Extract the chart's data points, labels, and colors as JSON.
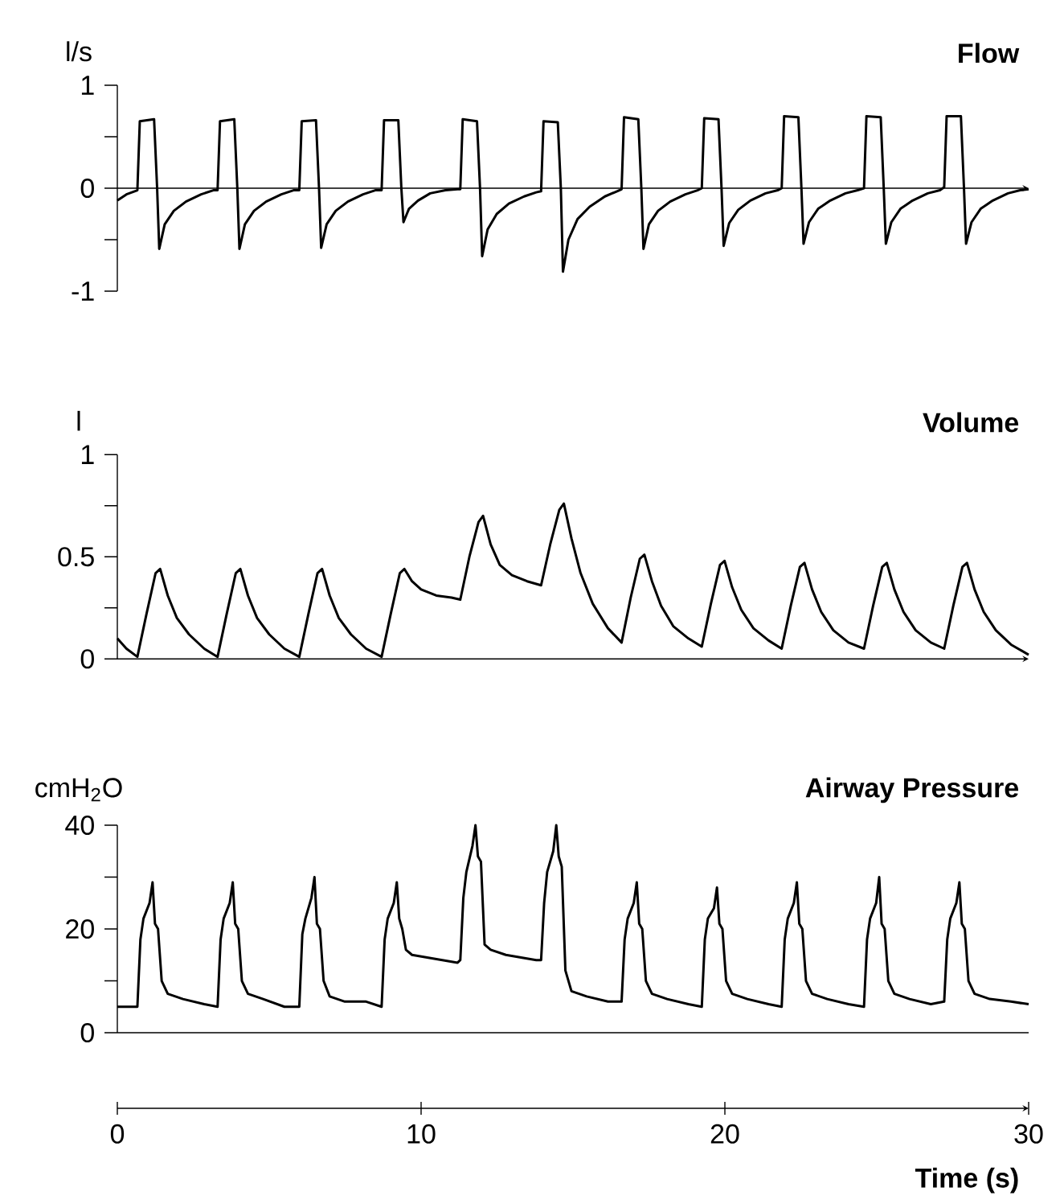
{
  "chart_data": [
    {
      "type": "line",
      "title": "Flow",
      "ylabel": "l/s",
      "color": "#000000",
      "xlim": [
        0,
        30
      ],
      "ylim": [
        -1,
        1
      ],
      "tick_labels": "y",
      "yticks": [
        -1,
        {
          "value": -0.5,
          "label": null
        },
        0,
        {
          "value": 0.5,
          "label": null
        },
        1
      ],
      "x": [
        0,
        0.3,
        0.66,
        0.74,
        1.21,
        1.31,
        1.38,
        1.56,
        1.86,
        2.26,
        2.76,
        3.16,
        3.3,
        3.38,
        3.85,
        3.95,
        4.02,
        4.2,
        4.5,
        4.9,
        5.4,
        5.8,
        5.99,
        6.07,
        6.54,
        6.64,
        6.71,
        6.89,
        7.19,
        7.59,
        8.09,
        8.49,
        8.7,
        8.78,
        9.25,
        9.35,
        9.42,
        9.6,
        9.9,
        10.3,
        10.8,
        11.2,
        11.29,
        11.37,
        11.84,
        11.94,
        12.01,
        12.19,
        12.49,
        12.89,
        13.39,
        13.79,
        13.95,
        14.03,
        14.5,
        14.6,
        14.67,
        14.85,
        15.15,
        15.55,
        16.05,
        16.45,
        16.6,
        16.68,
        17.15,
        17.25,
        17.32,
        17.5,
        17.8,
        18.2,
        18.7,
        19.1,
        19.24,
        19.32,
        19.79,
        19.89,
        19.96,
        20.14,
        20.44,
        20.84,
        21.34,
        21.74,
        21.87,
        21.95,
        22.42,
        22.52,
        22.59,
        22.77,
        23.07,
        23.47,
        23.97,
        24.37,
        24.58,
        24.66,
        25.13,
        25.23,
        25.3,
        25.48,
        25.78,
        26.18,
        26.68,
        27.08,
        27.22,
        27.3,
        27.77,
        27.87,
        27.94,
        28.12,
        28.42,
        28.82,
        29.32,
        29.72,
        30
      ],
      "values": [
        -0.12,
        -0.06,
        -0.02,
        0.65,
        0.67,
        0,
        -0.59,
        -0.35,
        -0.22,
        -0.13,
        -0.06,
        -0.02,
        -0.02,
        0.65,
        0.67,
        0,
        -0.59,
        -0.35,
        -0.22,
        -0.13,
        -0.06,
        -0.02,
        -0.02,
        0.65,
        0.66,
        0,
        -0.58,
        -0.35,
        -0.22,
        -0.13,
        -0.06,
        -0.02,
        -0.02,
        0.66,
        0.66,
        0,
        -0.33,
        -0.2,
        -0.12,
        -0.05,
        -0.02,
        -0.01,
        -0.01,
        0.67,
        0.65,
        0,
        -0.66,
        -0.4,
        -0.25,
        -0.15,
        -0.08,
        -0.04,
        -0.03,
        0.65,
        0.64,
        0,
        -0.81,
        -0.5,
        -0.3,
        -0.18,
        -0.08,
        -0.03,
        -0.01,
        0.69,
        0.67,
        0,
        -0.59,
        -0.35,
        -0.22,
        -0.13,
        -0.06,
        -0.02,
        0,
        0.68,
        0.67,
        0,
        -0.56,
        -0.34,
        -0.21,
        -0.12,
        -0.05,
        -0.02,
        0,
        0.7,
        0.69,
        0,
        -0.54,
        -0.33,
        -0.2,
        -0.12,
        -0.05,
        -0.02,
        0,
        0.7,
        0.69,
        0,
        -0.54,
        -0.33,
        -0.2,
        -0.12,
        -0.05,
        -0.02,
        0.01,
        0.7,
        0.7,
        0.01,
        -0.54,
        -0.33,
        -0.2,
        -0.12,
        -0.05,
        -0.02,
        -0.01
      ]
    },
    {
      "type": "line",
      "title": "Volume",
      "ylabel": "l",
      "color": "#000000",
      "xlim": [
        0,
        30
      ],
      "ylim": [
        0,
        1
      ],
      "tick_labels": "y",
      "yticks": [
        0,
        {
          "value": 0.25,
          "label": null
        },
        0.5,
        {
          "value": 0.75,
          "label": null
        },
        1
      ],
      "x": [
        0,
        0.3,
        0.66,
        0.96,
        1.26,
        1.41,
        1.66,
        1.96,
        2.36,
        2.86,
        3.3,
        3.6,
        3.9,
        4.05,
        4.3,
        4.6,
        5.0,
        5.5,
        5.99,
        6.29,
        6.59,
        6.74,
        6.99,
        7.29,
        7.69,
        8.19,
        8.7,
        9.0,
        9.3,
        9.45,
        9.7,
        10.0,
        10.5,
        11.0,
        11.29,
        11.59,
        11.89,
        12.04,
        12.29,
        12.59,
        12.99,
        13.49,
        13.95,
        14.25,
        14.55,
        14.7,
        14.95,
        15.25,
        15.65,
        16.15,
        16.6,
        16.9,
        17.2,
        17.35,
        17.6,
        17.9,
        18.3,
        18.8,
        19.24,
        19.54,
        19.84,
        19.99,
        20.24,
        20.54,
        20.94,
        21.44,
        21.87,
        22.17,
        22.47,
        22.62,
        22.87,
        23.17,
        23.57,
        24.07,
        24.58,
        24.88,
        25.18,
        25.33,
        25.58,
        25.88,
        26.28,
        26.78,
        27.22,
        27.52,
        27.82,
        27.97,
        28.22,
        28.52,
        28.92,
        29.42,
        30
      ],
      "values": [
        0.1,
        0.05,
        0.01,
        0.22,
        0.42,
        0.44,
        0.31,
        0.2,
        0.12,
        0.05,
        0.01,
        0.22,
        0.42,
        0.44,
        0.31,
        0.2,
        0.12,
        0.05,
        0.01,
        0.22,
        0.42,
        0.44,
        0.31,
        0.2,
        0.12,
        0.05,
        0.01,
        0.22,
        0.42,
        0.44,
        0.38,
        0.34,
        0.31,
        0.3,
        0.29,
        0.5,
        0.67,
        0.7,
        0.56,
        0.46,
        0.41,
        0.38,
        0.36,
        0.56,
        0.73,
        0.76,
        0.59,
        0.42,
        0.27,
        0.15,
        0.08,
        0.3,
        0.49,
        0.51,
        0.38,
        0.26,
        0.16,
        0.1,
        0.06,
        0.27,
        0.46,
        0.48,
        0.35,
        0.24,
        0.15,
        0.09,
        0.05,
        0.26,
        0.45,
        0.47,
        0.34,
        0.23,
        0.14,
        0.08,
        0.05,
        0.26,
        0.45,
        0.47,
        0.34,
        0.23,
        0.14,
        0.08,
        0.05,
        0.26,
        0.45,
        0.47,
        0.34,
        0.23,
        0.14,
        0.07,
        0.02
      ]
    },
    {
      "type": "line",
      "title": "Airway Pressure",
      "ylabel": "cmH$_{2}$O",
      "xlabel": "Time (s)",
      "color": "#000000",
      "xlim": [
        0,
        30
      ],
      "ylim": [
        0,
        40
      ],
      "yticks": [
        0,
        {
          "value": 10,
          "label": null
        },
        20,
        {
          "value": 30,
          "label": null
        },
        40
      ],
      "xticks": [
        0,
        10,
        20,
        30
      ],
      "x": [
        0,
        0.5,
        0.66,
        0.76,
        0.86,
        1.06,
        1.16,
        1.24,
        1.34,
        1.46,
        1.66,
        2.16,
        2.86,
        3.3,
        3.4,
        3.5,
        3.7,
        3.8,
        3.88,
        3.98,
        4.1,
        4.3,
        4.8,
        5.5,
        5.99,
        6.09,
        6.19,
        6.39,
        6.49,
        6.57,
        6.67,
        6.79,
        6.99,
        7.49,
        8.19,
        8.7,
        8.8,
        8.9,
        9.1,
        9.2,
        9.28,
        9.38,
        9.5,
        9.7,
        10.2,
        11.2,
        11.29,
        11.39,
        11.49,
        11.69,
        11.79,
        11.87,
        11.97,
        12.09,
        12.29,
        12.79,
        13.79,
        13.95,
        14.05,
        14.15,
        14.35,
        14.45,
        14.53,
        14.63,
        14.75,
        14.95,
        15.45,
        16.15,
        16.6,
        16.7,
        16.8,
        17.0,
        17.1,
        17.18,
        17.28,
        17.4,
        17.6,
        18.1,
        18.8,
        19.24,
        19.34,
        19.44,
        19.64,
        19.74,
        19.82,
        19.92,
        20.04,
        20.24,
        20.74,
        21.44,
        21.87,
        21.97,
        22.07,
        22.27,
        22.37,
        22.45,
        22.55,
        22.67,
        22.87,
        23.37,
        24.07,
        24.58,
        24.68,
        24.78,
        24.98,
        25.08,
        25.16,
        25.26,
        25.38,
        25.58,
        26.08,
        26.78,
        27.22,
        27.32,
        27.42,
        27.62,
        27.72,
        27.8,
        27.9,
        28.02,
        28.22,
        28.72,
        29.42,
        30
      ],
      "values": [
        5,
        5,
        5,
        18,
        22,
        25,
        29,
        21,
        20,
        10,
        7.5,
        6.5,
        5.5,
        5,
        18,
        22,
        25,
        29,
        21,
        20,
        10,
        7.5,
        6.5,
        5,
        5,
        19,
        22,
        26,
        30,
        21,
        20,
        10,
        7,
        6,
        6,
        5,
        18,
        22,
        25,
        29,
        22,
        20,
        16,
        15,
        14.5,
        13.5,
        14,
        26,
        31,
        36,
        40,
        34,
        33,
        17,
        16,
        15,
        14,
        14,
        25,
        31,
        35,
        40,
        34,
        32,
        12,
        8,
        7,
        6,
        6,
        18,
        22,
        25,
        29,
        21,
        20,
        10,
        7.5,
        6.5,
        5.5,
        5,
        18,
        22,
        24,
        28,
        21,
        20,
        10,
        7.5,
        6.5,
        5.5,
        5,
        18,
        22,
        25,
        29,
        21,
        20,
        10,
        7.5,
        6.5,
        5.5,
        5,
        18,
        22,
        25,
        30,
        21,
        20,
        10,
        7.5,
        6.5,
        5.5,
        6,
        18,
        22,
        25,
        29,
        21,
        20,
        10,
        7.5,
        6.5,
        6,
        5.5
      ]
    }
  ]
}
